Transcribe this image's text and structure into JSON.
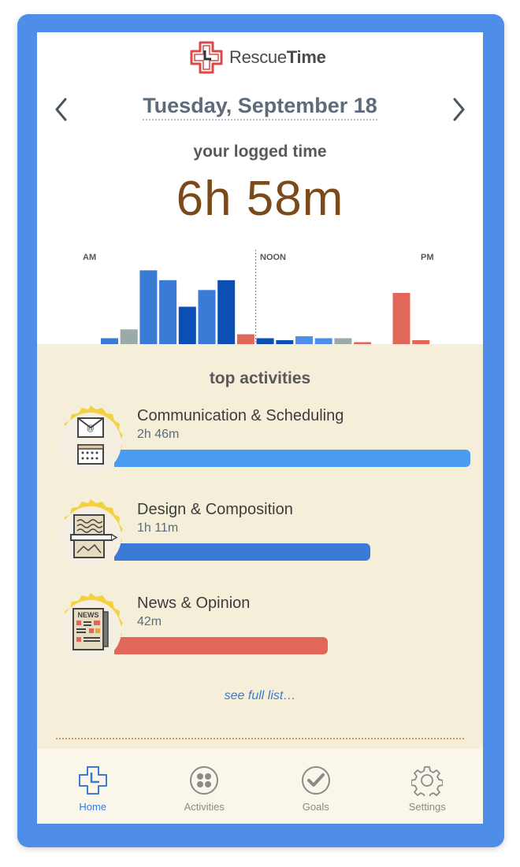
{
  "app": {
    "logo_text_regular": "Rescue",
    "logo_text_bold": "Time"
  },
  "header": {
    "date": "Tuesday, September 18",
    "logged_label": "your logged time",
    "logged_value": "6h 58m"
  },
  "chart_data": {
    "type": "bar",
    "x_labels": [
      "AM",
      "NOON",
      "PM"
    ],
    "values": [
      6,
      15,
      75,
      65,
      38,
      55,
      65,
      10,
      6,
      4,
      8,
      6,
      6,
      2,
      0,
      52,
      4
    ],
    "colors": [
      "#3a7bd5",
      "#9aaaa8",
      "#3a7bd5",
      "#3a7bd5",
      "#0b4fb4",
      "#3a7bd5",
      "#0b4fb4",
      "#e0675a",
      "#0b4fb4",
      "#0b4fb4",
      "#4f8ee8",
      "#4f8ee8",
      "#9aaaa8",
      "#e0675a",
      "#e0675a",
      "#e0675a",
      "#e0675a"
    ],
    "ylim": [
      0,
      80
    ],
    "noon_marker_after_index": 7
  },
  "activities": {
    "title": "top activities",
    "items": [
      {
        "name": "Communication & Scheduling",
        "duration": "2h 46m",
        "fraction": 1.0,
        "color": "#4a9cf0",
        "icon": "envelope-calendar-icon"
      },
      {
        "name": "Design & Composition",
        "duration": "1h 11m",
        "fraction": 0.72,
        "color": "#3a7bd5",
        "icon": "drawing-tablet-icon"
      },
      {
        "name": "News & Opinion",
        "duration": "42m",
        "fraction": 0.6,
        "color": "#e0675a",
        "icon": "newspaper-icon"
      }
    ],
    "see_full": "see full list…",
    "badge_label": "NEWS"
  },
  "tabs": [
    {
      "label": "Home",
      "icon": "home-clock-icon",
      "active": true
    },
    {
      "label": "Activities",
      "icon": "activities-grid-icon",
      "active": false
    },
    {
      "label": "Goals",
      "icon": "goals-check-icon",
      "active": false
    },
    {
      "label": "Settings",
      "icon": "settings-gear-icon",
      "active": false
    }
  ]
}
